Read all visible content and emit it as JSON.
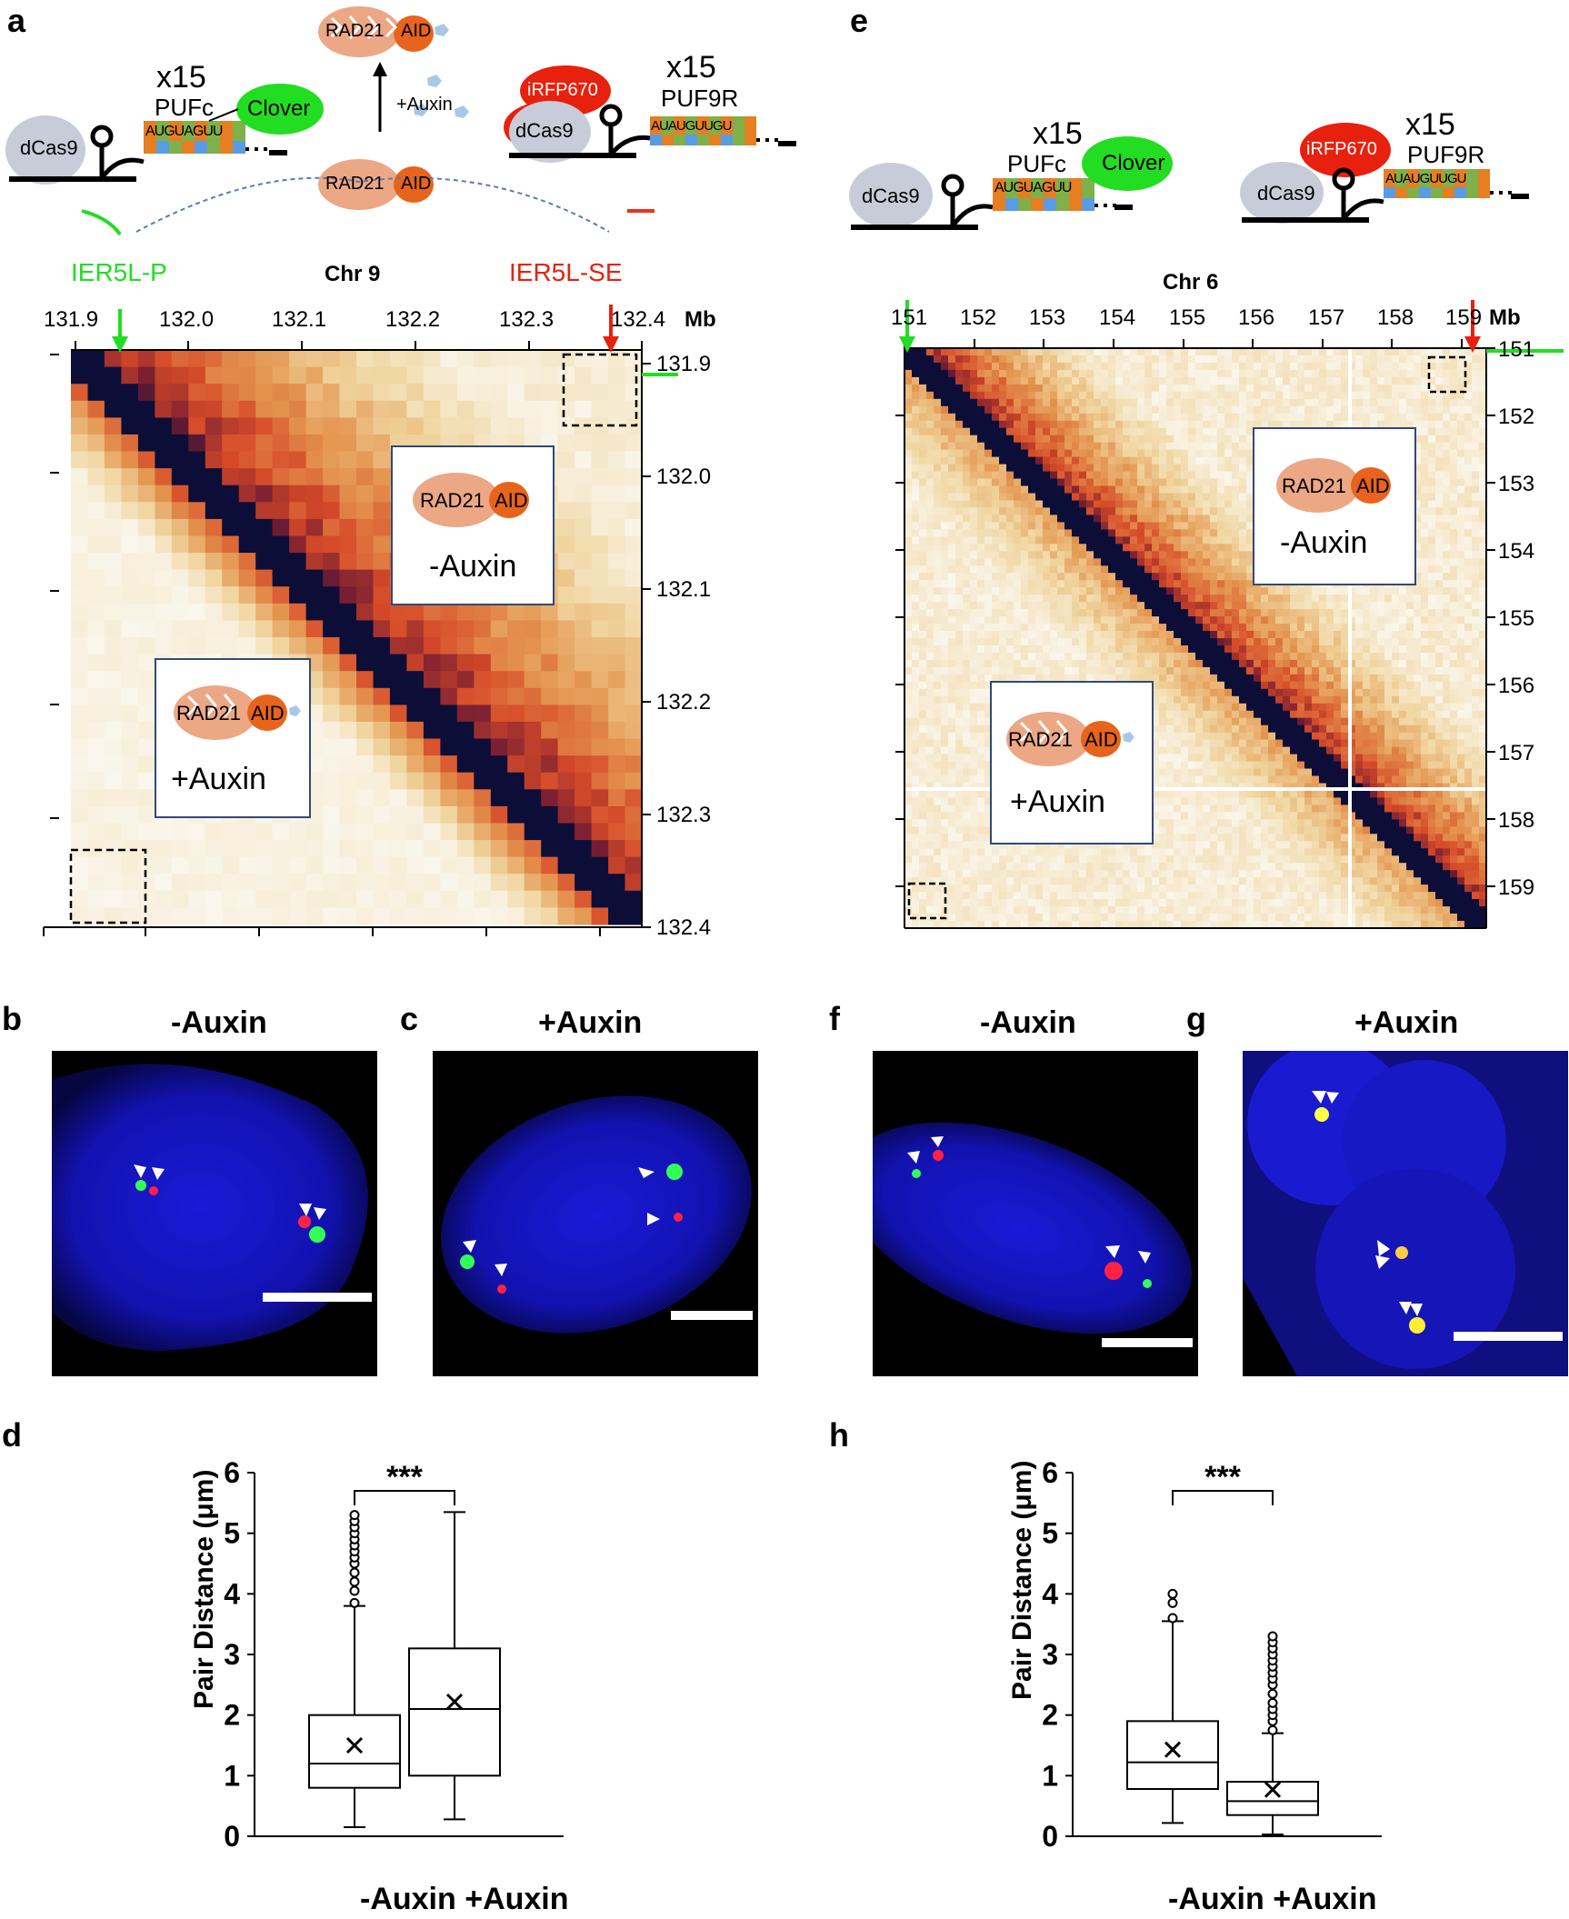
{
  "panel_labels": [
    "a",
    "b",
    "c",
    "d",
    "e",
    "f",
    "g",
    "h"
  ],
  "schematics": {
    "dcas9": "dCas9",
    "x15": "x15",
    "pufc": "PUFc",
    "puf9r": "PUF9R",
    "clover": "Clover",
    "irfp": "iRFP670",
    "rad21": "RAD21",
    "aid": "AID",
    "auxin_label": "+Auxin",
    "seq_pufc": "AUGUAGUU",
    "seq_puf9r": "AUAUGUUGU"
  },
  "panel_a": {
    "left_locus": "IER5L-P",
    "right_locus": "IER5L-SE",
    "chr": "Chr 9",
    "unit": "Mb",
    "x_ticks": [
      "131.9",
      "132.0",
      "132.1",
      "132.2",
      "132.3",
      "132.4"
    ],
    "y_ticks": [
      "131.9",
      "132.0",
      "132.1",
      "132.2",
      "132.3",
      "132.4"
    ],
    "minus_auxin": "-Auxin",
    "plus_auxin": "+Auxin"
  },
  "panel_e": {
    "chr": "Chr 6",
    "unit": "Mb",
    "x_ticks": [
      "151",
      "152",
      "153",
      "154",
      "155",
      "156",
      "157",
      "158",
      "159"
    ],
    "y_ticks": [
      "151",
      "152",
      "153",
      "154",
      "155",
      "156",
      "157",
      "158",
      "159"
    ],
    "minus_auxin": "-Auxin",
    "plus_auxin": "+Auxin"
  },
  "conditions": {
    "minus": "-Auxin",
    "plus": "+Auxin"
  },
  "chart_data": [
    {
      "type": "box",
      "panel": "d",
      "ylabel": "Pair Distance (μm)",
      "xlabel": "-Auxin +Auxin",
      "ylim": [
        0,
        6
      ],
      "yticks": [
        "0",
        "1",
        "2",
        "3",
        "4",
        "5",
        "6"
      ],
      "significance": "***",
      "series": [
        {
          "name": "-Auxin",
          "min": 0.15,
          "q1": 0.8,
          "median": 1.2,
          "q3": 2.0,
          "max": 3.8,
          "mean": 1.5,
          "outliers": [
            3.85,
            4.05,
            4.2,
            4.35,
            4.5,
            4.6,
            4.7,
            4.8,
            4.9,
            5.0,
            5.1,
            5.2,
            5.3
          ]
        },
        {
          "name": "+Auxin",
          "min": 0.28,
          "q1": 1.0,
          "median": 2.1,
          "q3": 3.1,
          "max": 5.35,
          "mean": 2.22,
          "outliers": []
        }
      ]
    },
    {
      "type": "box",
      "panel": "h",
      "ylabel": "Pair Distance (μm)",
      "xlabel": "-Auxin +Auxin",
      "ylim": [
        0,
        6
      ],
      "yticks": [
        "0",
        "1",
        "2",
        "3",
        "4",
        "5",
        "6"
      ],
      "significance": "***",
      "series": [
        {
          "name": "-Auxin",
          "min": 0.22,
          "q1": 0.78,
          "median": 1.22,
          "q3": 1.9,
          "max": 3.55,
          "mean": 1.43,
          "outliers": [
            3.6,
            3.85,
            4.0
          ]
        },
        {
          "name": "+Auxin",
          "min": 0.03,
          "q1": 0.35,
          "median": 0.58,
          "q3": 0.9,
          "max": 1.7,
          "mean": 0.77,
          "outliers": [
            1.75,
            1.9,
            2.0,
            2.1,
            2.2,
            2.35,
            2.5,
            2.6,
            2.7,
            2.8,
            2.9,
            3.0,
            3.1,
            3.2,
            3.3
          ]
        }
      ]
    }
  ]
}
